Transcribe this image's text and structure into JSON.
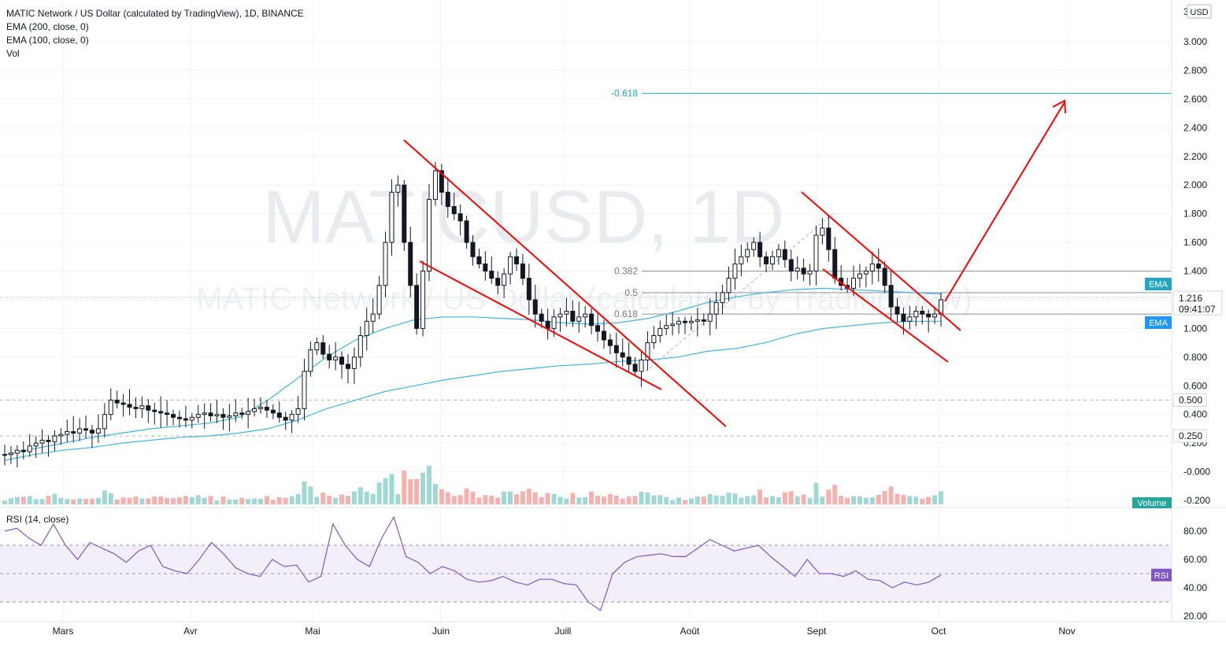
{
  "header": {
    "symbol_line": "MATIC Network / US Dollar (calculated by TradingView), 1D, BINANCE",
    "indicators": [
      "EMA (200, close, 0)",
      "EMA (100, close, 0)",
      "Vol"
    ]
  },
  "watermark": {
    "ticker": "MATICUSD, 1D",
    "name": "MATIC Network / US Dollar (calculated by TradingView)"
  },
  "price_axis": {
    "currency": "USD",
    "top_label": "3.",
    "ticks": [
      "3.000",
      "2.800",
      "2.600",
      "2.400",
      "2.200",
      "2.000",
      "1.800",
      "1.600",
      "1.400",
      "1.200",
      "1.000",
      "0.800",
      "0.600",
      "0.400",
      "0.200",
      "-0.000",
      "-0.200"
    ],
    "last_price": "1.216",
    "countdown": "09:41:07",
    "level_labels": [
      "0.500",
      "0.250"
    ],
    "ema_tag": "EMA",
    "volume_tag": "Volume"
  },
  "rsi": {
    "title": "RSI (14, close)",
    "ticks": [
      "80.00",
      "60.00",
      "40.00",
      "20.00"
    ],
    "tag": "RSI",
    "current": 49,
    "upper": 70,
    "lower": 30
  },
  "time_axis": {
    "labels": [
      "Mars",
      "Avr",
      "Mai",
      "Juin",
      "Juill",
      "Août",
      "Sept",
      "Oct",
      "Nov"
    ]
  },
  "fib_labels": [
    "-0.618",
    "0.382",
    "0.5",
    "0.618"
  ],
  "colors": {
    "up": "#26a69a",
    "down": "#ef5350",
    "ema": "#2962ff",
    "ema_line": "#41b6e6",
    "trend": "#ff0000",
    "rsi_line": "#7e57c2",
    "rsi_band": "#f3effa",
    "fib_target": "#22a8c3",
    "grid": "#f0f3fa"
  },
  "chart_data": {
    "type": "candlestick",
    "y_range": [
      -0.2,
      3.1
    ],
    "levels": {
      "fib_-0.618": 2.64,
      "fib_0.382": 1.4,
      "fib_0.5": 1.25,
      "fib_0.618": 1.1,
      "horizontal_0.500": 0.5,
      "horizontal_0.250": 0.25
    },
    "price_path": [
      0.12,
      0.13,
      0.15,
      0.14,
      0.18,
      0.2,
      0.22,
      0.21,
      0.25,
      0.26,
      0.28,
      0.27,
      0.3,
      0.29,
      0.27,
      0.3,
      0.4,
      0.5,
      0.48,
      0.47,
      0.45,
      0.44,
      0.46,
      0.43,
      0.42,
      0.41,
      0.4,
      0.38,
      0.37,
      0.36,
      0.38,
      0.4,
      0.41,
      0.39,
      0.4,
      0.38,
      0.39,
      0.41,
      0.4,
      0.42,
      0.44,
      0.45,
      0.43,
      0.41,
      0.38,
      0.36,
      0.4,
      0.44,
      0.7,
      0.85,
      0.9,
      0.82,
      0.78,
      0.8,
      0.75,
      0.72,
      0.8,
      0.95,
      1.05,
      1.1,
      1.3,
      1.6,
      1.95,
      2.0,
      1.6,
      1.3,
      1.0,
      1.4,
      1.9,
      2.1,
      1.95,
      1.85,
      1.8,
      1.75,
      1.6,
      1.5,
      1.45,
      1.4,
      1.35,
      1.3,
      1.38,
      1.5,
      1.45,
      1.35,
      1.2,
      1.1,
      1.05,
      1.0,
      1.08,
      1.1,
      1.12,
      1.05,
      1.08,
      1.1,
      1.02,
      0.98,
      0.92,
      0.88,
      0.83,
      0.8,
      0.75,
      0.7,
      0.78,
      0.9,
      0.95,
      1.0,
      1.02,
      1.03,
      1.05,
      1.04,
      1.05,
      1.06,
      1.05,
      1.1,
      1.18,
      1.25,
      1.35,
      1.45,
      1.5,
      1.55,
      1.6,
      1.5,
      1.45,
      1.5,
      1.55,
      1.48,
      1.4,
      1.42,
      1.38,
      1.4,
      1.65,
      1.7,
      1.55,
      1.35,
      1.3,
      1.28,
      1.35,
      1.38,
      1.4,
      1.45,
      1.42,
      1.3,
      1.15,
      1.1,
      1.05,
      1.08,
      1.12,
      1.1,
      1.08,
      1.1,
      1.2
    ],
    "ema200": [
      0.08,
      0.12,
      0.15,
      0.17,
      0.2,
      0.22,
      0.24,
      0.25,
      0.27,
      0.3,
      0.36,
      0.44,
      0.5,
      0.56,
      0.6,
      0.64,
      0.67,
      0.7,
      0.72,
      0.74,
      0.75,
      0.77,
      0.78,
      0.8,
      0.84,
      0.86,
      0.9,
      0.96,
      1.0,
      1.02,
      1.04,
      1.05,
      1.05
    ],
    "ema100": [
      0.12,
      0.16,
      0.2,
      0.24,
      0.27,
      0.3,
      0.32,
      0.34,
      0.38,
      0.5,
      0.65,
      0.8,
      0.92,
      1.0,
      1.06,
      1.08,
      1.08,
      1.07,
      1.06,
      1.04,
      1.03,
      1.04,
      1.07,
      1.12,
      1.18,
      1.22,
      1.25,
      1.27,
      1.28,
      1.27,
      1.26,
      1.25,
      1.24
    ],
    "rsi": [
      80,
      82,
      75,
      70,
      85,
      70,
      60,
      72,
      68,
      64,
      58,
      66,
      70,
      55,
      52,
      50,
      60,
      72,
      64,
      54,
      50,
      48,
      60,
      55,
      56,
      44,
      48,
      85,
      70,
      60,
      55,
      75,
      90,
      62,
      58,
      50,
      55,
      52,
      46,
      44,
      45,
      48,
      44,
      42,
      46,
      46,
      43,
      42,
      30,
      24,
      50,
      58,
      62,
      63,
      64,
      62,
      62,
      68,
      74,
      70,
      66,
      68,
      70,
      62,
      55,
      48,
      60,
      50,
      50,
      48,
      52,
      46,
      45,
      40,
      44,
      42,
      44,
      49
    ],
    "trendlines": "two descending wedge channels, breakout arrow to -0.618 target",
    "months": [
      "Mars",
      "Avr",
      "Mai",
      "Juin",
      "Juill",
      "Août",
      "Sept",
      "Oct",
      "Nov"
    ]
  }
}
